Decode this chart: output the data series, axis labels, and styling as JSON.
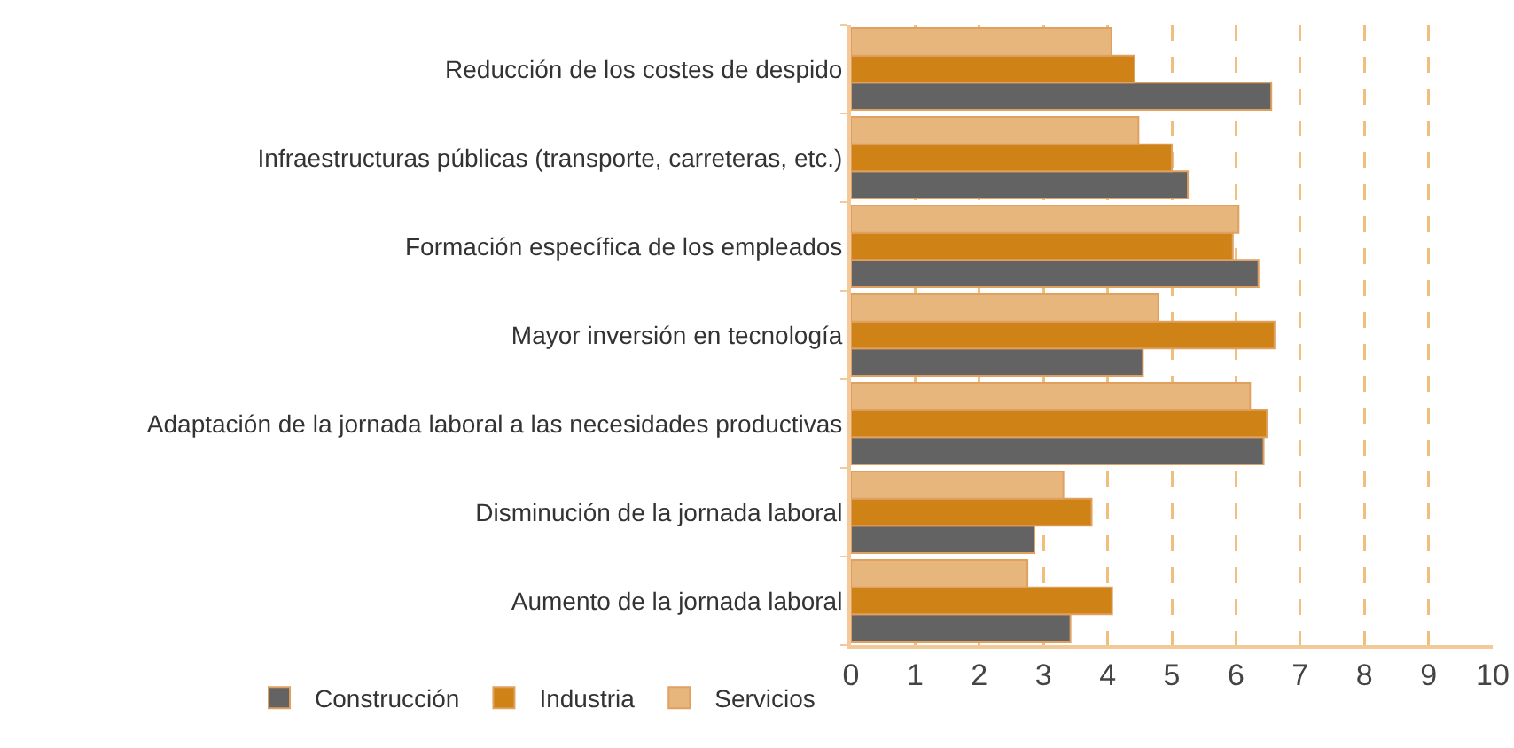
{
  "chart_data": {
    "type": "bar",
    "orientation": "horizontal",
    "categories": [
      "Reducción de los costes de despido",
      "Infraestructuras públicas (transporte, carreteras, etc.)",
      "Formación específica de los empleados",
      "Mayor inversión en tecnología",
      "Adaptación de la jornada laboral a las necesidades productivas",
      "Disminución de la jornada laboral",
      "Aumento de la jornada laboral"
    ],
    "series": [
      {
        "name": "Construcción",
        "color": "#636363",
        "values": [
          6.55,
          5.25,
          6.35,
          4.55,
          6.43,
          2.86,
          3.42
        ]
      },
      {
        "name": "Industria",
        "color": "#cf8317",
        "values": [
          4.42,
          5.0,
          5.95,
          6.6,
          6.48,
          3.75,
          4.07
        ]
      },
      {
        "name": "Servicios",
        "color": "#e6b67c",
        "values": [
          4.06,
          4.48,
          6.04,
          4.79,
          6.22,
          3.31,
          2.75
        ]
      }
    ],
    "xlim": [
      0,
      10
    ],
    "xticks": [
      0,
      1,
      2,
      3,
      4,
      5,
      6,
      7,
      8,
      9,
      10
    ],
    "grid": "x",
    "legend": "bottom"
  }
}
